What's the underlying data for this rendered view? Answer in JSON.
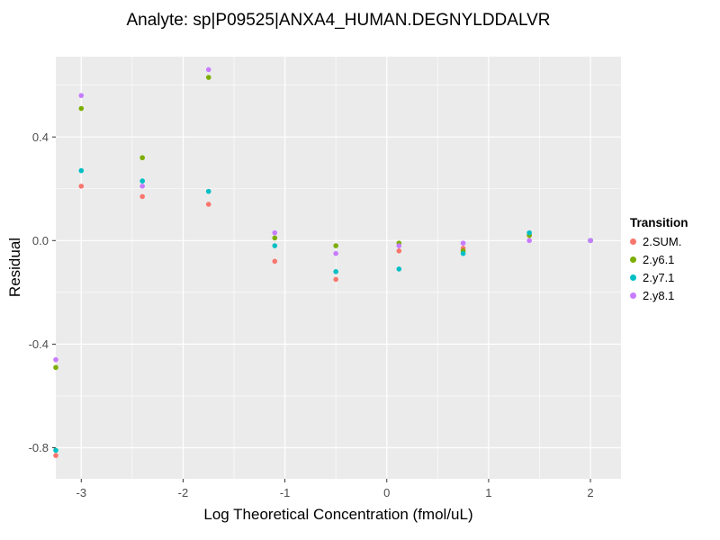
{
  "title": "Analyte: sp|P09525|ANXA4_HUMAN.DEGNYLDDALVR",
  "chart_data": {
    "type": "scatter",
    "title": "Analyte: sp|P09525|ANXA4_HUMAN.DEGNYLDDALVR",
    "xlabel": "Log Theoretical Concentration (fmol/uL)",
    "ylabel": "Residual",
    "xlim": [
      -3.25,
      2.3
    ],
    "ylim": [
      -0.92,
      0.71
    ],
    "x_ticks": [
      -3,
      -2,
      -1,
      0,
      1,
      2
    ],
    "x_tick_labels": [
      "-3",
      "-2",
      "-1",
      "0",
      "1",
      "2"
    ],
    "y_ticks": [
      -0.8,
      -0.4,
      0,
      0.4
    ],
    "y_tick_labels": [
      "-0.8",
      "-0.4",
      "0.0",
      "0.4"
    ],
    "grid": true,
    "legend_title": "Transition",
    "legend_position": "right",
    "series": [
      {
        "name": "2.SUM.",
        "color": "#F8766D",
        "points": [
          [
            -3.25,
            -0.83
          ],
          [
            -3.0,
            0.21
          ],
          [
            -2.4,
            0.17
          ],
          [
            -1.75,
            0.14
          ],
          [
            -1.1,
            -0.08
          ],
          [
            -0.5,
            -0.15
          ],
          [
            0.12,
            -0.04
          ],
          [
            0.75,
            -0.03
          ],
          [
            1.4,
            0.02
          ],
          [
            2.0,
            0.0
          ]
        ]
      },
      {
        "name": "2.y6.1",
        "color": "#7CAE00",
        "points": [
          [
            -3.25,
            -0.49
          ],
          [
            -3.0,
            0.51
          ],
          [
            -2.4,
            0.32
          ],
          [
            -1.75,
            0.63
          ],
          [
            -1.1,
            0.01
          ],
          [
            -0.5,
            -0.02
          ],
          [
            0.12,
            -0.01
          ],
          [
            0.75,
            -0.04
          ],
          [
            1.4,
            0.02
          ],
          [
            2.0,
            0.0
          ]
        ]
      },
      {
        "name": "2.y7.1",
        "color": "#00BFC4",
        "points": [
          [
            -3.25,
            -0.81
          ],
          [
            -3.0,
            0.27
          ],
          [
            -2.4,
            0.23
          ],
          [
            -1.75,
            0.19
          ],
          [
            -1.1,
            -0.02
          ],
          [
            -0.5,
            -0.12
          ],
          [
            0.12,
            -0.11
          ],
          [
            0.75,
            -0.05
          ],
          [
            1.4,
            0.03
          ],
          [
            2.0,
            0.0
          ]
        ]
      },
      {
        "name": "2.y8.1",
        "color": "#C77CFF",
        "points": [
          [
            -3.25,
            -0.46
          ],
          [
            -3.0,
            0.56
          ],
          [
            -2.4,
            0.21
          ],
          [
            -1.75,
            0.66
          ],
          [
            -1.1,
            0.03
          ],
          [
            -0.5,
            -0.05
          ],
          [
            0.12,
            -0.02
          ],
          [
            0.75,
            -0.01
          ],
          [
            1.4,
            0.0
          ],
          [
            2.0,
            0.0
          ]
        ]
      }
    ],
    "colors": {
      "panel_bg": "#EBEBEB",
      "grid_major": "#FFFFFF",
      "grid_minor": "#FFFFFF",
      "tick_text": "#4D4D4D",
      "tick_mark": "#333333"
    }
  }
}
